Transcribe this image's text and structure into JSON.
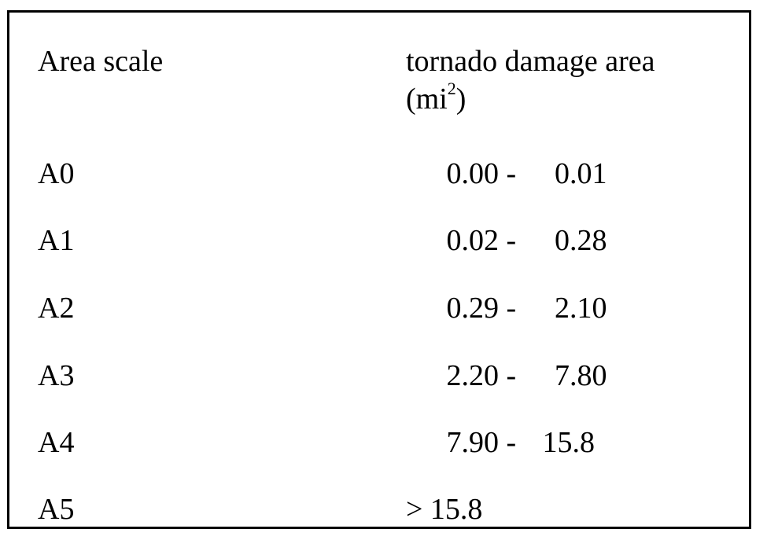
{
  "table": {
    "header": {
      "col1": "Area scale",
      "col2": "tornado damage area",
      "col2_unit_prefix": "(mi",
      "col2_unit_exp": "2",
      "col2_unit_suffix": ")"
    },
    "rows": [
      {
        "scale": "A0",
        "low": "0.00",
        "sep": "-",
        "high": "0.01"
      },
      {
        "scale": "A1",
        "low": "0.02",
        "sep": "-",
        "high": "0.28"
      },
      {
        "scale": "A2",
        "low": "0.29",
        "sep": "-",
        "high": "2.10"
      },
      {
        "scale": "A3",
        "low": "2.20",
        "sep": "-",
        "high": "7.80"
      },
      {
        "scale": "A4",
        "low": "7.90",
        "sep": "-",
        "high": "15.8"
      },
      {
        "scale": "A5",
        "text": "> 15.8"
      }
    ]
  }
}
